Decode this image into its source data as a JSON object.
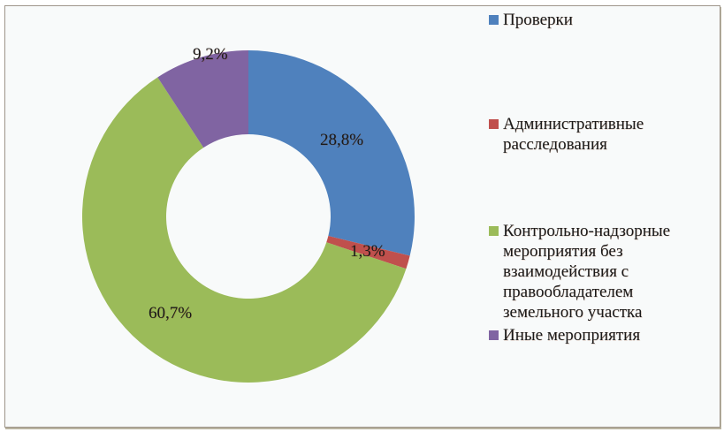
{
  "chart_data": {
    "type": "pie",
    "variant": "donut",
    "title": "",
    "categories": [
      "Проверки",
      "Административные расследования",
      "Контрольно-надзорные мероприятия без взаимодействия с правообладателем земельного участка",
      "Иные мероприятия"
    ],
    "values": [
      28.8,
      1.3,
      60.7,
      9.2
    ],
    "value_labels": [
      "28,8%",
      "1,3%",
      "60,7%",
      "9,2%"
    ],
    "colors": [
      "#4f81bd",
      "#c0504d",
      "#9bbb59",
      "#8064a2"
    ],
    "legend_position": "right"
  },
  "legend": {
    "items": [
      {
        "label": "Проверки",
        "color": "#4f81bd"
      },
      {
        "label": "Административные\nрасследования",
        "color": "#c0504d"
      },
      {
        "label": "Контрольно-надзорные\nмероприятия без\nвзаимодействия с\nправообладателем\nземельного участка",
        "color": "#9bbb59"
      },
      {
        "label": "Иные мероприятия",
        "color": "#8064a2"
      }
    ]
  },
  "data_labels": {
    "proverki": "28,8%",
    "admin": "1,3%",
    "kontrol": "60,7%",
    "inye": "9,2%"
  }
}
